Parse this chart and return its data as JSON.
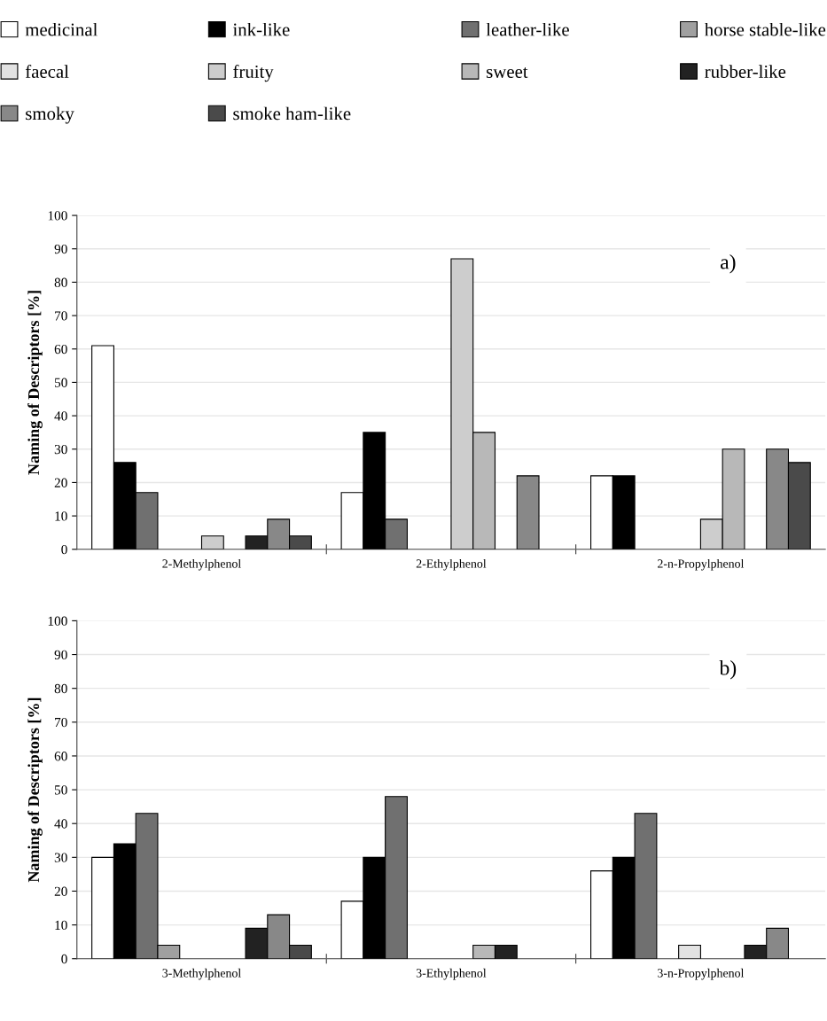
{
  "chart_data": [
    {
      "type": "bar",
      "ylabel": "Naming of Descriptors [%]",
      "categories": [
        "2-Methylphenol",
        "2-Ethylphenol",
        "2-n-Propylphenol"
      ],
      "ylim": [
        0,
        100
      ],
      "yticks": [
        0,
        10,
        20,
        30,
        40,
        50,
        60,
        70,
        80,
        90,
        100
      ],
      "grid": "y",
      "legend": "top",
      "annotations": [
        "a)"
      ],
      "series": [
        {
          "name": "medicinal",
          "color": "#ffffff",
          "values": [
            61,
            17,
            22
          ]
        },
        {
          "name": "ink-like",
          "color": "#000000",
          "values": [
            26,
            35,
            22
          ]
        },
        {
          "name": "leather-like",
          "color": "#707070",
          "values": [
            17,
            9,
            0
          ]
        },
        {
          "name": "horse stable-like",
          "color": "#a0a0a0",
          "values": [
            0,
            0,
            0
          ]
        },
        {
          "name": "faecal",
          "color": "#e2e2e2",
          "values": [
            0,
            0,
            0
          ]
        },
        {
          "name": "fruity",
          "color": "#cdcdcd",
          "values": [
            4,
            87,
            9
          ]
        },
        {
          "name": "sweet",
          "color": "#b8b8b8",
          "values": [
            0,
            35,
            30
          ]
        },
        {
          "name": "rubber-like",
          "color": "#222222",
          "values": [
            4,
            0,
            0
          ]
        },
        {
          "name": "smoky",
          "color": "#888888",
          "values": [
            9,
            22,
            30
          ]
        },
        {
          "name": "smoke ham-like",
          "color": "#4a4a4a",
          "values": [
            4,
            0,
            26
          ]
        }
      ]
    },
    {
      "type": "bar",
      "ylabel": "Naming of Descriptors [%]",
      "categories": [
        "3-Methylphenol",
        "3-Ethylphenol",
        "3-n-Propylphenol"
      ],
      "ylim": [
        0,
        100
      ],
      "yticks": [
        0,
        10,
        20,
        30,
        40,
        50,
        60,
        70,
        80,
        90,
        100
      ],
      "grid": "y",
      "annotations": [
        "b)"
      ],
      "series": [
        {
          "color": "#ffffff",
          "values": [
            30,
            17,
            26
          ]
        },
        {
          "color": "#000000",
          "values": [
            34,
            30,
            30
          ]
        },
        {
          "color": "#707070",
          "values": [
            43,
            48,
            43
          ]
        },
        {
          "color": "#a0a0a0",
          "values": [
            4,
            0,
            0
          ]
        },
        {
          "color": "#e2e2e2",
          "values": [
            0,
            0,
            4
          ]
        },
        {
          "color": "#cdcdcd",
          "values": [
            0,
            0,
            0
          ]
        },
        {
          "color": "#b8b8b8",
          "values": [
            0,
            4,
            0
          ]
        },
        {
          "color": "#222222",
          "values": [
            9,
            4,
            4
          ]
        },
        {
          "color": "#888888",
          "values": [
            13,
            0,
            9
          ]
        },
        {
          "color": "#4a4a4a",
          "values": [
            4,
            0,
            0
          ]
        }
      ]
    }
  ]
}
